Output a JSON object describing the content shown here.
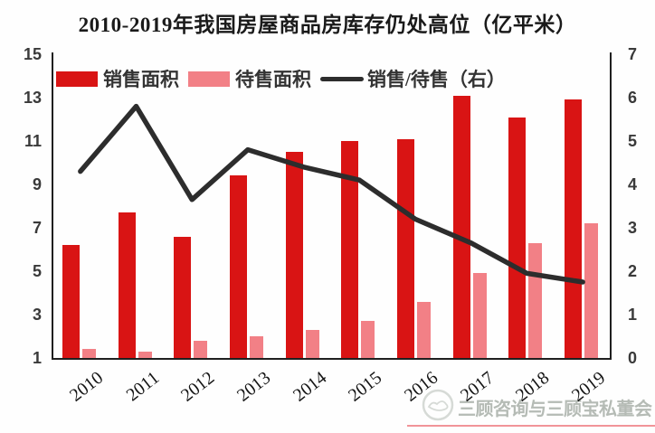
{
  "title": "2010-2019年我国房屋商品房库存仍处高位（亿平米）",
  "chart_data": {
    "type": "bar+line combo",
    "title": "2010-2019年我国房屋商品房库存仍处高位（亿平米）",
    "categories": [
      "2010",
      "2011",
      "2012",
      "2013",
      "2014",
      "2015",
      "2016",
      "2017",
      "2018",
      "2019"
    ],
    "series": [
      {
        "name": "销售面积",
        "type": "bar",
        "axis": "left",
        "color": "#d91414",
        "values": [
          6.2,
          7.7,
          6.6,
          9.4,
          10.5,
          11.0,
          11.1,
          13.1,
          12.1,
          12.9
        ]
      },
      {
        "name": "待售面积",
        "type": "bar",
        "axis": "left",
        "color": "#f28086",
        "values": [
          1.4,
          1.3,
          1.8,
          2.0,
          2.3,
          2.7,
          3.6,
          4.9,
          6.3,
          7.2
        ]
      },
      {
        "name": "销售/待售（右）",
        "type": "line",
        "axis": "right",
        "color": "#2d2d2d",
        "values": [
          4.3,
          5.8,
          3.65,
          4.8,
          4.4,
          4.1,
          3.2,
          2.65,
          1.95,
          1.75
        ]
      }
    ],
    "left_axis": {
      "min": 1,
      "max": 15,
      "ticks": [
        15,
        13,
        11,
        9,
        7,
        5,
        3,
        1
      ]
    },
    "right_axis": {
      "min": 0,
      "max": 7,
      "ticks": [
        7,
        6,
        5,
        4,
        3,
        2,
        1,
        0
      ]
    },
    "grid": false,
    "legend_position": "top-inside",
    "unit": "亿平米"
  },
  "watermark": {
    "text": "三顾咨询与三顾宝私董会"
  }
}
